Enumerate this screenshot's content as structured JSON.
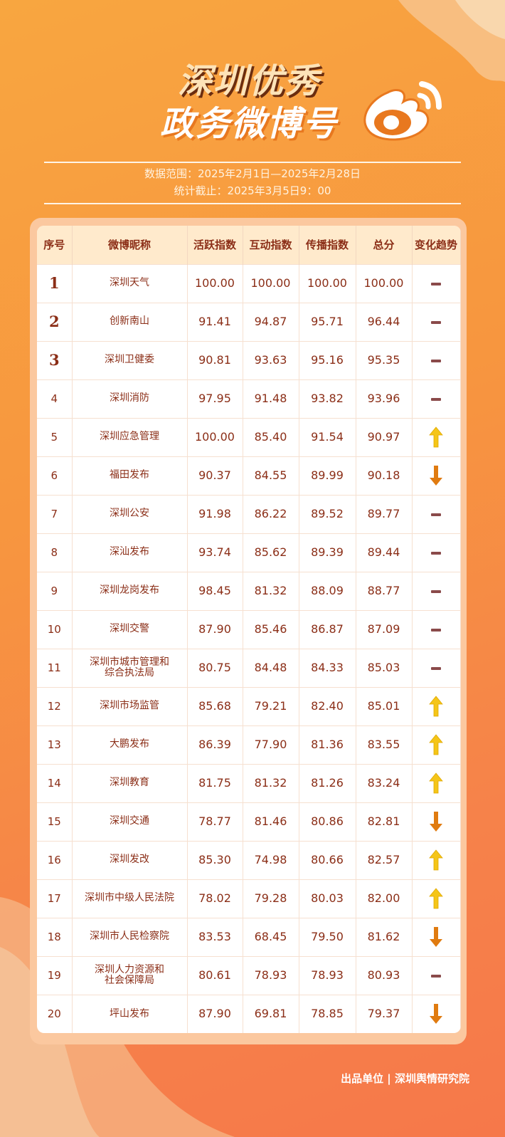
{
  "title": {
    "line1": "深圳优秀",
    "line2": "政务微博号"
  },
  "logo": "weibo-logo",
  "meta": {
    "range": "数据范围：2025年2月1日—2025年2月28日",
    "cutoff": "统计截止：2025年3月5日9：00"
  },
  "table": {
    "headers": [
      "序号",
      "微博昵称",
      "活跃指数",
      "互动指数",
      "传播指数",
      "总分",
      "变化趋势"
    ],
    "rows": [
      {
        "rank": "1",
        "name": "深圳天气",
        "active": "100.00",
        "interact": "100.00",
        "spread": "100.00",
        "total": "100.00",
        "trend": "flat"
      },
      {
        "rank": "2",
        "name": "创新南山",
        "active": "91.41",
        "interact": "94.87",
        "spread": "95.71",
        "total": "96.44",
        "trend": "flat"
      },
      {
        "rank": "3",
        "name": "深圳卫健委",
        "active": "90.81",
        "interact": "93.63",
        "spread": "95.16",
        "total": "95.35",
        "trend": "flat"
      },
      {
        "rank": "4",
        "name": "深圳消防",
        "active": "97.95",
        "interact": "91.48",
        "spread": "93.82",
        "total": "93.96",
        "trend": "flat"
      },
      {
        "rank": "5",
        "name": "深圳应急管理",
        "active": "100.00",
        "interact": "85.40",
        "spread": "91.54",
        "total": "90.97",
        "trend": "up"
      },
      {
        "rank": "6",
        "name": "福田发布",
        "active": "90.37",
        "interact": "84.55",
        "spread": "89.99",
        "total": "90.18",
        "trend": "down"
      },
      {
        "rank": "7",
        "name": "深圳公安",
        "active": "91.98",
        "interact": "86.22",
        "spread": "89.52",
        "total": "89.77",
        "trend": "flat"
      },
      {
        "rank": "8",
        "name": "深汕发布",
        "active": "93.74",
        "interact": "85.62",
        "spread": "89.39",
        "total": "89.44",
        "trend": "flat"
      },
      {
        "rank": "9",
        "name": "深圳龙岗发布",
        "active": "98.45",
        "interact": "81.32",
        "spread": "88.09",
        "total": "88.77",
        "trend": "flat"
      },
      {
        "rank": "10",
        "name": "深圳交警",
        "active": "87.90",
        "interact": "85.46",
        "spread": "86.87",
        "total": "87.09",
        "trend": "flat"
      },
      {
        "rank": "11",
        "name": "深圳市城市管理和\n综合执法局",
        "active": "80.75",
        "interact": "84.48",
        "spread": "84.33",
        "total": "85.03",
        "trend": "flat"
      },
      {
        "rank": "12",
        "name": "深圳市场监管",
        "active": "85.68",
        "interact": "79.21",
        "spread": "82.40",
        "total": "85.01",
        "trend": "up"
      },
      {
        "rank": "13",
        "name": "大鹏发布",
        "active": "86.39",
        "interact": "77.90",
        "spread": "81.36",
        "total": "83.55",
        "trend": "up"
      },
      {
        "rank": "14",
        "name": "深圳教育",
        "active": "81.75",
        "interact": "81.32",
        "spread": "81.26",
        "total": "83.24",
        "trend": "up"
      },
      {
        "rank": "15",
        "name": "深圳交通",
        "active": "78.77",
        "interact": "81.46",
        "spread": "80.86",
        "total": "82.81",
        "trend": "down"
      },
      {
        "rank": "16",
        "name": "深圳发改",
        "active": "85.30",
        "interact": "74.98",
        "spread": "80.66",
        "total": "82.57",
        "trend": "up"
      },
      {
        "rank": "17",
        "name": "深圳市中级人民法院",
        "active": "78.02",
        "interact": "79.28",
        "spread": "80.03",
        "total": "82.00",
        "trend": "up"
      },
      {
        "rank": "18",
        "name": "深圳市人民检察院",
        "active": "83.53",
        "interact": "68.45",
        "spread": "79.50",
        "total": "81.62",
        "trend": "down"
      },
      {
        "rank": "19",
        "name": "深圳人力资源和\n社会保障局",
        "active": "80.61",
        "interact": "78.93",
        "spread": "78.93",
        "total": "80.93",
        "trend": "flat"
      },
      {
        "rank": "20",
        "name": "坪山发布",
        "active": "87.90",
        "interact": "69.81",
        "spread": "78.85",
        "total": "79.37",
        "trend": "down"
      }
    ]
  },
  "colors": {
    "up": "#f5c518",
    "down": "#e07b10",
    "flat": "#8a4a4a",
    "text": "#8b2e17"
  },
  "footer": "出品单位 | 深圳舆情研究院"
}
